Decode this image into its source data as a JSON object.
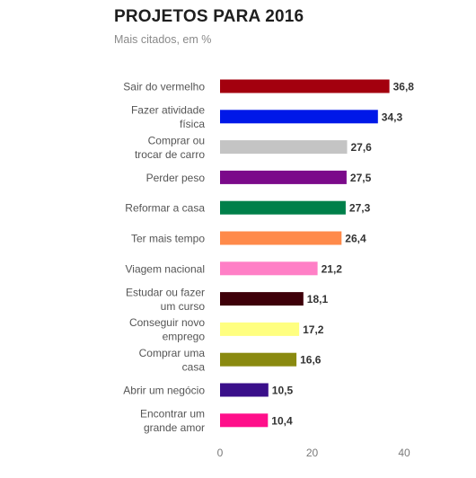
{
  "title": "PROJETOS PARA 2016",
  "subtitle": "Mais citados, em %",
  "chart_data": {
    "type": "bar",
    "orientation": "horizontal",
    "title": "PROJETOS PARA 2016",
    "subtitle": "Mais citados, em %",
    "categories": [
      [
        "Sair do vermelho"
      ],
      [
        "Fazer atividade",
        "física"
      ],
      [
        "Comprar ou",
        "trocar de carro"
      ],
      [
        "Perder peso"
      ],
      [
        "Reformar a casa"
      ],
      [
        "Ter mais tempo"
      ],
      [
        "Viagem nacional"
      ],
      [
        "Estudar ou fazer",
        "um curso"
      ],
      [
        "Conseguir novo",
        "emprego"
      ],
      [
        "Comprar uma",
        "casa"
      ],
      [
        "Abrir um negócio"
      ],
      [
        "Encontrar um",
        "grande amor"
      ]
    ],
    "values": [
      36.8,
      34.3,
      27.6,
      27.5,
      27.3,
      26.4,
      21.2,
      18.1,
      17.2,
      16.6,
      10.5,
      10.4
    ],
    "value_labels": [
      "36,8",
      "34,3",
      "27,6",
      "27,5",
      "27,3",
      "26,4",
      "21,2",
      "18,1",
      "17,2",
      "16,6",
      "10,5",
      "10,4"
    ],
    "colors": [
      "#a3000e",
      "#0018e8",
      "#c4c4c4",
      "#7b0a8a",
      "#00804a",
      "#ff8a4a",
      "#ff7fc6",
      "#3e0009",
      "#ffff80",
      "#8a8a10",
      "#3a0f8a",
      "#ff0f8a"
    ],
    "xlim": [
      0,
      40
    ],
    "xticks": [
      0,
      20,
      40
    ],
    "xtick_labels": [
      "0",
      "20",
      "40"
    ],
    "grid": false,
    "legend": "none"
  }
}
